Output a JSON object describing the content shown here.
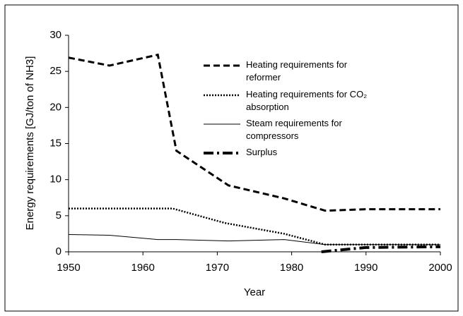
{
  "chart_data": {
    "type": "line",
    "x_label": "Year",
    "y_label": "Energy requirements [GJ/ton of NH3]",
    "xlim": [
      1950,
      2000
    ],
    "xticks": [
      1950,
      1960,
      1970,
      1980,
      1990,
      2000
    ],
    "ylim": [
      0,
      30
    ],
    "yticks": [
      0,
      5,
      10,
      15,
      20,
      25,
      30
    ],
    "grid": false,
    "series": [
      {
        "name": "Heating requirements for reformer",
        "color": "#000000",
        "style": "dashed",
        "x": [
          1950,
          1955.5,
          1962,
          1964.5,
          1971.5,
          1979,
          1984.5,
          1990,
          2000
        ],
        "values": [
          26.9,
          25.8,
          27.3,
          14,
          9.2,
          7.4,
          5.7,
          5.9,
          5.9
        ]
      },
      {
        "name": "Heating requirements for CO₂ absorption",
        "color": "#000000",
        "style": "dotted",
        "x": [
          1950,
          1964,
          1971,
          1979,
          1984.5,
          2000
        ],
        "values": [
          6,
          6,
          4,
          2.5,
          1,
          1
        ]
      },
      {
        "name": "Steam requirements for compressors",
        "color": "#000000",
        "style": "solid",
        "x": [
          1950,
          1955.5,
          1962,
          1964.5,
          1971.5,
          1979,
          1984.5,
          2000
        ],
        "values": [
          2.4,
          2.3,
          1.7,
          1.7,
          1.5,
          1.7,
          1,
          1
        ]
      },
      {
        "name": "Surplus",
        "color": "#000000",
        "style": "dashdot",
        "x": [
          1984,
          1990,
          2000
        ],
        "values": [
          0,
          0.6,
          0.7
        ]
      }
    ]
  }
}
